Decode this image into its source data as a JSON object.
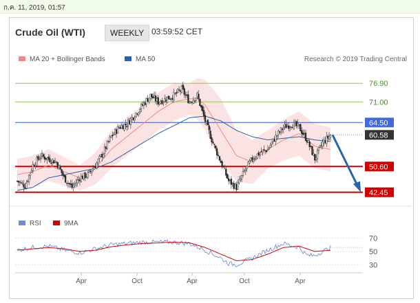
{
  "timestamp": "ก.ค. 11, 2019, 01:57",
  "header": {
    "instrument": "Crude Oil (WTI)",
    "period": "WEEKLY",
    "time": "03:59:52 CET"
  },
  "copyright": "Research © 2019 Trading Central",
  "legend": {
    "ma20": "MA 20 + Bollinger Bands",
    "ma50": "MA 50",
    "rsi": "RSI",
    "ma9": "9MA"
  },
  "colors": {
    "up": "#2a2a2a",
    "down": "#2a2a2a",
    "band": "#fbd9d9",
    "ma20": "#f08a8a",
    "ma50": "#2f5fa8",
    "support": "#d40000",
    "resistance": "#4169e1",
    "target_green": "#8ec85a",
    "arrow": "#2166ac",
    "rsi": "#6b8fd6",
    "rsi_ma": "#d40000"
  },
  "chart_data": [
    {
      "type": "candlestick",
      "title": "Crude Oil (WTI)",
      "x_tick_labels": [
        "Apr",
        "Oct",
        "Apr",
        "Oct",
        "Apr"
      ],
      "ylim": [
        38.5,
        81.5
      ],
      "levels": [
        {
          "label": "76.90",
          "value": 76.9,
          "kind": "target"
        },
        {
          "label": "71.00",
          "value": 71.0,
          "kind": "target"
        },
        {
          "label": "64.50",
          "value": 64.5,
          "kind": "resistance"
        },
        {
          "label": "60.58",
          "value": 60.58,
          "kind": "last"
        },
        {
          "label": "50.60",
          "value": 50.6,
          "kind": "support"
        },
        {
          "label": "42.45",
          "value": 42.45,
          "kind": "support"
        }
      ],
      "close_anchors": [
        [
          0,
          46
        ],
        [
          6,
          44.5
        ],
        [
          12,
          51
        ],
        [
          18,
          54
        ],
        [
          24,
          53
        ],
        [
          30,
          52
        ],
        [
          36,
          47
        ],
        [
          42,
          44
        ],
        [
          48,
          47
        ],
        [
          54,
          48
        ],
        [
          60,
          51
        ],
        [
          66,
          55
        ],
        [
          72,
          60
        ],
        [
          78,
          63
        ],
        [
          84,
          64
        ],
        [
          90,
          67
        ],
        [
          96,
          70
        ],
        [
          102,
          73
        ],
        [
          108,
          71
        ],
        [
          114,
          72
        ],
        [
          120,
          73
        ],
        [
          126,
          75
        ],
        [
          132,
          71
        ],
        [
          138,
          73
        ],
        [
          144,
          65
        ],
        [
          150,
          58
        ],
        [
          156,
          52
        ],
        [
          162,
          46
        ],
        [
          168,
          44
        ],
        [
          174,
          49
        ],
        [
          180,
          53
        ],
        [
          186,
          55
        ],
        [
          192,
          56
        ],
        [
          198,
          60
        ],
        [
          204,
          63
        ],
        [
          210,
          64
        ],
        [
          216,
          63
        ],
        [
          222,
          59
        ],
        [
          228,
          53
        ],
        [
          234,
          58
        ],
        [
          240,
          60.6
        ]
      ],
      "ma20_anchors": [
        [
          0,
          48
        ],
        [
          12,
          49
        ],
        [
          24,
          51
        ],
        [
          36,
          49
        ],
        [
          48,
          47
        ],
        [
          60,
          50
        ],
        [
          72,
          56
        ],
        [
          84,
          60
        ],
        [
          96,
          64
        ],
        [
          108,
          68
        ],
        [
          120,
          71
        ],
        [
          132,
          72
        ],
        [
          138,
          72
        ],
        [
          144,
          70
        ],
        [
          156,
          62
        ],
        [
          168,
          54
        ],
        [
          180,
          52
        ],
        [
          192,
          56
        ],
        [
          204,
          59
        ],
        [
          216,
          61
        ],
        [
          228,
          57
        ],
        [
          240,
          56
        ]
      ],
      "ma50_anchors": [
        [
          0,
          43
        ],
        [
          12,
          44
        ],
        [
          24,
          47
        ],
        [
          36,
          48
        ],
        [
          48,
          49
        ],
        [
          60,
          50
        ],
        [
          72,
          52
        ],
        [
          84,
          55
        ],
        [
          96,
          58
        ],
        [
          108,
          61
        ],
        [
          120,
          63.5
        ],
        [
          132,
          66
        ],
        [
          144,
          66.5
        ],
        [
          156,
          65
        ],
        [
          168,
          62
        ],
        [
          180,
          60
        ],
        [
          192,
          59
        ],
        [
          204,
          59.5
        ],
        [
          216,
          60
        ],
        [
          228,
          59
        ],
        [
          240,
          58.5
        ]
      ],
      "band_width_anchors": [
        [
          0,
          5
        ],
        [
          24,
          5
        ],
        [
          48,
          4
        ],
        [
          72,
          6
        ],
        [
          96,
          6
        ],
        [
          120,
          6
        ],
        [
          132,
          5
        ],
        [
          144,
          8
        ],
        [
          156,
          10
        ],
        [
          168,
          8
        ],
        [
          192,
          6
        ],
        [
          216,
          7
        ],
        [
          240,
          7
        ]
      ],
      "forecast": {
        "from": 60.58,
        "to": 42.45
      }
    },
    {
      "type": "line",
      "title": "",
      "y_tick_labels": [
        "70",
        "50",
        "30"
      ],
      "ylim": [
        20,
        80
      ],
      "series": [
        {
          "name": "RSI"
        },
        {
          "name": "9MA"
        }
      ],
      "rsi_anchors": [
        [
          0,
          52
        ],
        [
          12,
          56
        ],
        [
          24,
          58
        ],
        [
          36,
          52
        ],
        [
          48,
          48
        ],
        [
          60,
          54
        ],
        [
          72,
          60
        ],
        [
          84,
          62
        ],
        [
          96,
          64
        ],
        [
          108,
          64
        ],
        [
          120,
          64
        ],
        [
          132,
          62
        ],
        [
          144,
          52
        ],
        [
          156,
          40
        ],
        [
          162,
          32
        ],
        [
          168,
          30
        ],
        [
          180,
          40
        ],
        [
          192,
          52
        ],
        [
          204,
          62
        ],
        [
          216,
          56
        ],
        [
          222,
          44
        ],
        [
          228,
          44
        ],
        [
          240,
          56
        ]
      ],
      "rsi_ma_anchors": [
        [
          0,
          52
        ],
        [
          12,
          54
        ],
        [
          24,
          56
        ],
        [
          36,
          54
        ],
        [
          48,
          50
        ],
        [
          60,
          52
        ],
        [
          72,
          57
        ],
        [
          84,
          60
        ],
        [
          96,
          62
        ],
        [
          108,
          63
        ],
        [
          120,
          64
        ],
        [
          132,
          63
        ],
        [
          144,
          56
        ],
        [
          156,
          46
        ],
        [
          168,
          36
        ],
        [
          180,
          38
        ],
        [
          192,
          46
        ],
        [
          204,
          56
        ],
        [
          216,
          58
        ],
        [
          228,
          50
        ],
        [
          240,
          52
        ]
      ]
    }
  ]
}
